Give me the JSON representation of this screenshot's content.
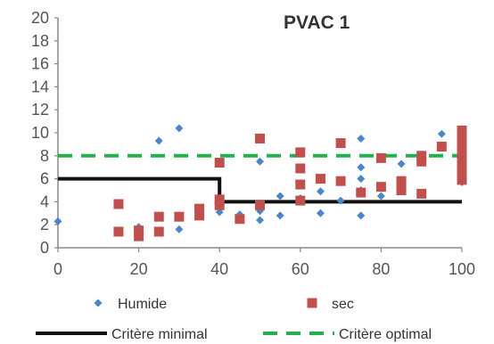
{
  "chart_data": {
    "type": "scatter",
    "title": "PVAC 1",
    "xlabel": "",
    "ylabel": "",
    "xlim": [
      0,
      100
    ],
    "ylim": [
      0,
      20
    ],
    "x_ticks": [
      "0",
      "20",
      "40",
      "60",
      "80",
      "100"
    ],
    "y_ticks": [
      "0",
      "2",
      "4",
      "6",
      "8",
      "10",
      "12",
      "14",
      "16",
      "18",
      "20"
    ],
    "grid": false,
    "legend_position": "bottom",
    "series": [
      {
        "name": "Humide",
        "kind": "points",
        "marker": "diamond",
        "color": "#4a86c8",
        "points": [
          [
            0,
            2.3
          ],
          [
            20,
            1.8
          ],
          [
            20,
            1.2
          ],
          [
            25,
            9.3
          ],
          [
            25,
            1.5
          ],
          [
            30,
            10.4
          ],
          [
            30,
            1.6
          ],
          [
            40,
            3.1
          ],
          [
            40,
            3.8
          ],
          [
            45,
            2.9
          ],
          [
            50,
            7.5
          ],
          [
            50,
            2.4
          ],
          [
            50,
            3.2
          ],
          [
            55,
            2.8
          ],
          [
            55,
            4.5
          ],
          [
            60,
            4.3
          ],
          [
            65,
            4.9
          ],
          [
            65,
            3.0
          ],
          [
            70,
            4.1
          ],
          [
            75,
            9.5
          ],
          [
            75,
            7.0
          ],
          [
            75,
            6.0
          ],
          [
            75,
            5.0
          ],
          [
            75,
            2.8
          ],
          [
            80,
            4.5
          ],
          [
            85,
            7.3
          ],
          [
            95,
            9.9
          ],
          [
            100,
            5.7
          ]
        ]
      },
      {
        "name": "sec",
        "kind": "points",
        "marker": "square",
        "color": "#c0504d",
        "points": [
          [
            15,
            3.8
          ],
          [
            15,
            1.4
          ],
          [
            20,
            1.5
          ],
          [
            20,
            1.0
          ],
          [
            25,
            2.7
          ],
          [
            25,
            1.4
          ],
          [
            30,
            2.7
          ],
          [
            35,
            3.4
          ],
          [
            35,
            2.8
          ],
          [
            40,
            7.4
          ],
          [
            40,
            4.2
          ],
          [
            40,
            3.7
          ],
          [
            45,
            2.5
          ],
          [
            50,
            9.5
          ],
          [
            50,
            3.7
          ],
          [
            60,
            8.3
          ],
          [
            60,
            6.9
          ],
          [
            60,
            5.5
          ],
          [
            60,
            4.1
          ],
          [
            65,
            6.0
          ],
          [
            70,
            9.1
          ],
          [
            70,
            5.8
          ],
          [
            75,
            4.8
          ],
          [
            80,
            7.8
          ],
          [
            80,
            5.3
          ],
          [
            85,
            5.8
          ],
          [
            85,
            5.0
          ],
          [
            90,
            8.0
          ],
          [
            90,
            7.5
          ],
          [
            90,
            4.7
          ],
          [
            95,
            8.8
          ],
          [
            100,
            10.2
          ],
          [
            100,
            9.5
          ],
          [
            100,
            8.8
          ],
          [
            100,
            8.0
          ],
          [
            100,
            7.3
          ],
          [
            100,
            6.6
          ],
          [
            100,
            5.9
          ]
        ]
      },
      {
        "name": "Critère minimal",
        "kind": "line",
        "style": "solid",
        "color": "#111111",
        "points": [
          [
            0,
            6
          ],
          [
            40,
            6
          ],
          [
            40,
            4
          ],
          [
            100,
            4
          ]
        ]
      },
      {
        "name": "Critère optimal",
        "kind": "line",
        "style": "dashed",
        "color": "#22b14c",
        "points": [
          [
            0,
            8
          ],
          [
            100,
            8
          ]
        ]
      }
    ]
  }
}
